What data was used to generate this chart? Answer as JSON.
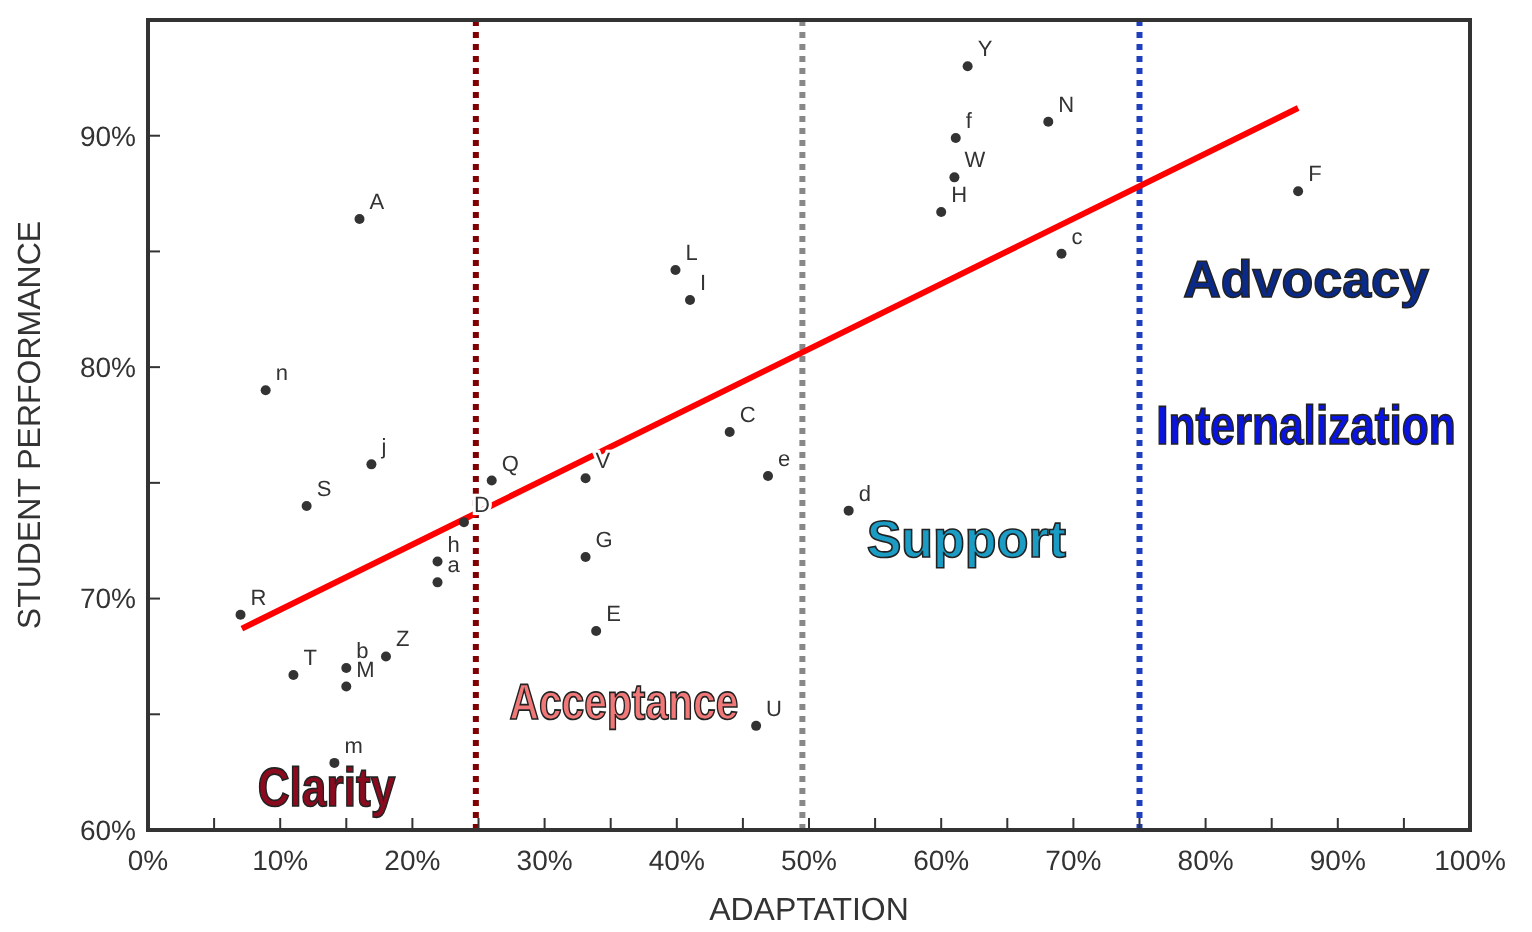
{
  "chart_data": {
    "type": "scatter",
    "xlabel": "ADAPTATION",
    "ylabel": "STUDENT PERFORMANCE",
    "xlim": [
      0,
      100
    ],
    "ylim": [
      60,
      95
    ],
    "xticks": [
      {
        "value": 0,
        "label": "0%"
      },
      {
        "value": 5,
        "label": null
      },
      {
        "value": 10,
        "label": "10%"
      },
      {
        "value": 15,
        "label": null
      },
      {
        "value": 20,
        "label": "20%"
      },
      {
        "value": 25,
        "label": null
      },
      {
        "value": 30,
        "label": "30%"
      },
      {
        "value": 35,
        "label": null
      },
      {
        "value": 40,
        "label": "40%"
      },
      {
        "value": 45,
        "label": null
      },
      {
        "value": 50,
        "label": "50%"
      },
      {
        "value": 55,
        "label": null
      },
      {
        "value": 60,
        "label": "60%"
      },
      {
        "value": 65,
        "label": null
      },
      {
        "value": 70,
        "label": "70%"
      },
      {
        "value": 75,
        "label": null
      },
      {
        "value": 80,
        "label": "80%"
      },
      {
        "value": 85,
        "label": null
      },
      {
        "value": 90,
        "label": "90%"
      },
      {
        "value": 95,
        "label": null
      },
      {
        "value": 100,
        "label": "100%"
      }
    ],
    "yticks": [
      {
        "value": 60,
        "label": "60%"
      },
      {
        "value": 65,
        "label": null
      },
      {
        "value": 70,
        "label": "70%"
      },
      {
        "value": 75,
        "label": null
      },
      {
        "value": 80,
        "label": "80%"
      },
      {
        "value": 85,
        "label": null
      },
      {
        "value": 90,
        "label": "90%"
      }
    ],
    "grid": false,
    "marker": "circle",
    "series": [
      {
        "color": "#333333",
        "x": [
          16.0,
          39.9,
          41.0,
          8.9,
          44.0,
          16.9,
          26.0,
          33.1,
          46.9,
          12.0,
          23.9,
          21.9,
          21.9,
          33.1,
          7.0,
          33.9,
          18.0,
          11.0,
          15.0,
          15.0,
          46.0,
          14.1,
          62.0,
          68.1,
          61.1,
          61.0,
          60.0,
          87.0,
          69.1,
          53.0
        ],
        "values": [
          86.4,
          84.2,
          82.9,
          79.0,
          77.2,
          75.8,
          75.1,
          75.2,
          75.3,
          74.0,
          73.3,
          71.6,
          70.7,
          71.8,
          69.3,
          68.6,
          67.5,
          66.7,
          67.0,
          66.2,
          64.5,
          62.9,
          93.0,
          90.6,
          89.9,
          88.2,
          86.7,
          87.6,
          84.9,
          73.8
        ],
        "value_labels": [
          "A",
          "L",
          "I",
          "n",
          "C",
          "j",
          "Q",
          "V",
          "e",
          "S",
          "D",
          "h",
          "a",
          "G",
          "R",
          "E",
          "Z",
          "T",
          "b",
          "M",
          "U",
          "m",
          "Y",
          "N",
          "f",
          "W",
          "H",
          "F",
          "c",
          "d"
        ]
      },
      {
        "type": "line",
        "marker": "none",
        "color": "#ff0000",
        "x": [
          7.1,
          87.0
        ],
        "values": [
          68.7,
          91.2
        ]
      }
    ],
    "ref_lines": [
      {
        "axis": "x",
        "value": 24.8,
        "color": "#7f0000",
        "line_style": "dotted"
      },
      {
        "axis": "x",
        "value": 49.5,
        "color": "#888888",
        "line_style": "dotted"
      },
      {
        "axis": "x",
        "value": 75.0,
        "color": "#1f3fbf",
        "line_style": "dotted"
      }
    ],
    "annotations": [
      "Clarity",
      "Acceptance",
      "Support",
      "Advocacy",
      "Internalization"
    ]
  }
}
